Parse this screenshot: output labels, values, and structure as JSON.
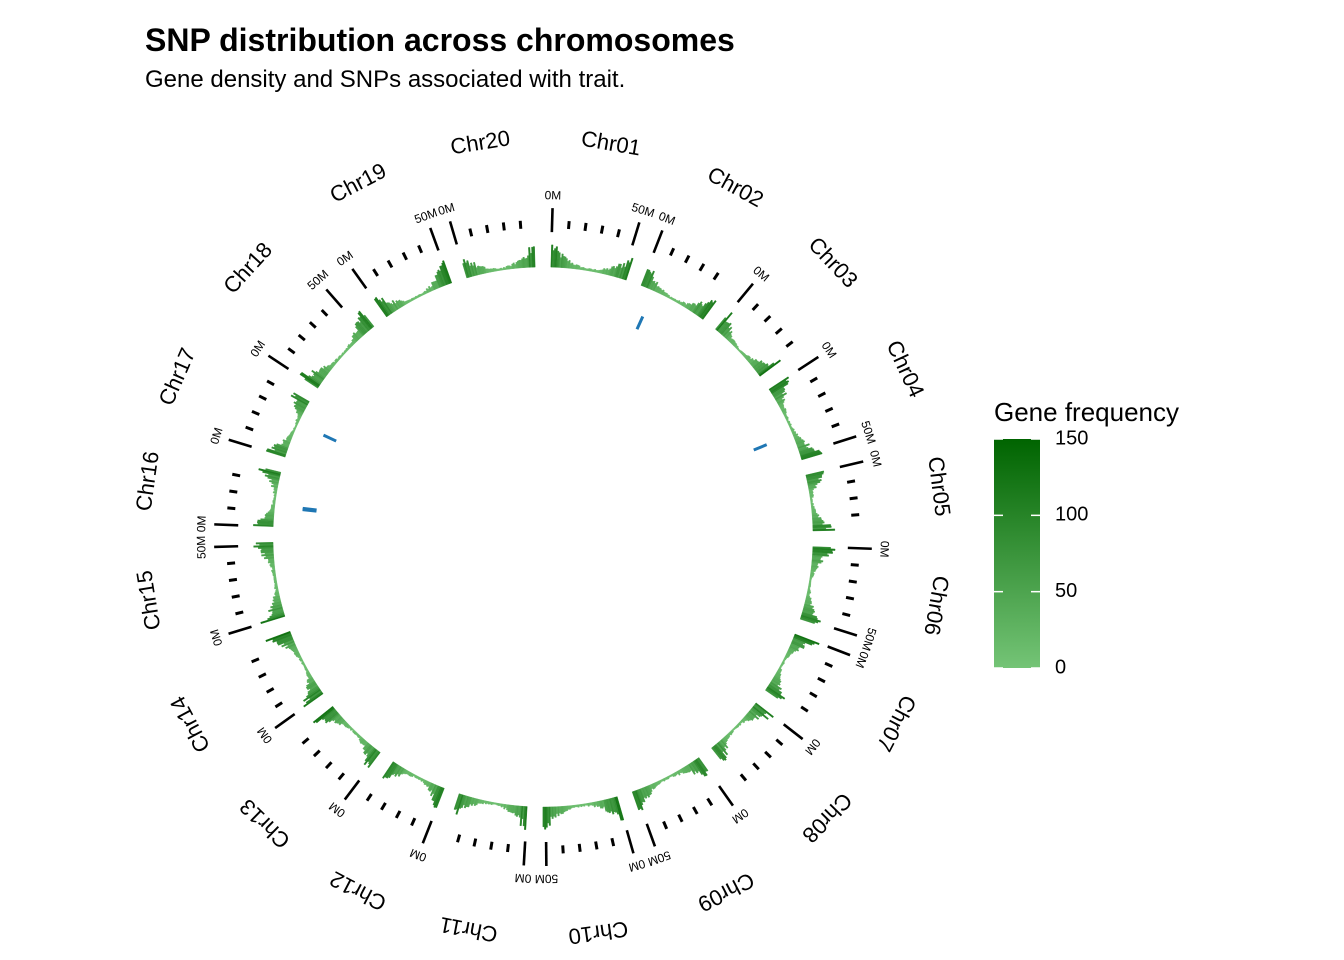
{
  "title": "SNP distribution across chromosomes",
  "subtitle": "Gene density and SNPs associated with trait.",
  "chart_data": {
    "type": "circular-histogram",
    "title": "SNP distribution across chromosomes",
    "subtitle": "Gene density and SNPs associated with trait.",
    "chromosomes": [
      {
        "name": "Chr01",
        "length_mb": 53
      },
      {
        "name": "Chr02",
        "length_mb": 49
      },
      {
        "name": "Chr03",
        "length_mb": 45
      },
      {
        "name": "Chr04",
        "length_mb": 54
      },
      {
        "name": "Chr05",
        "length_mb": 39
      },
      {
        "name": "Chr06",
        "length_mb": 51
      },
      {
        "name": "Chr07",
        "length_mb": 44
      },
      {
        "name": "Chr08",
        "length_mb": 44
      },
      {
        "name": "Chr09",
        "length_mb": 52
      },
      {
        "name": "Chr10",
        "length_mb": 52
      },
      {
        "name": "Chr11",
        "length_mb": 48
      },
      {
        "name": "Chr12",
        "length_mb": 40
      },
      {
        "name": "Chr13",
        "length_mb": 46
      },
      {
        "name": "Chr14",
        "length_mb": 49
      },
      {
        "name": "Chr15",
        "length_mb": 52
      },
      {
        "name": "Chr16",
        "length_mb": 38
      },
      {
        "name": "Chr17",
        "length_mb": 42
      },
      {
        "name": "Chr18",
        "length_mb": 58
      },
      {
        "name": "Chr19",
        "length_mb": 51
      },
      {
        "name": "Chr20",
        "length_mb": 48
      }
    ],
    "tick_interval_mb": 10,
    "tick_labels": [
      "0M",
      "50M"
    ],
    "density_bin_mb": 1,
    "gene_frequency_range": [
      0,
      150
    ],
    "density_profile": "high near chromosome ends, low in centromeric middle",
    "snps": [
      {
        "chr": "Chr02",
        "pos_mb": 10
      },
      {
        "chr": "Chr04",
        "pos_mb": 35
      },
      {
        "chr": "Chr16",
        "pos_mb": 14
      },
      {
        "chr": "Chr16",
        "pos_mb": 15
      },
      {
        "chr": "Chr17",
        "pos_mb": 25
      }
    ],
    "snp_color": "#1f77b4",
    "legend": {
      "title": "Gene frequency",
      "ticks": [
        "0",
        "50",
        "100",
        "150"
      ],
      "tick_values": [
        0,
        50,
        100,
        150
      ],
      "color_low": "#74c476",
      "color_high": "#006400",
      "placement": "right"
    }
  }
}
